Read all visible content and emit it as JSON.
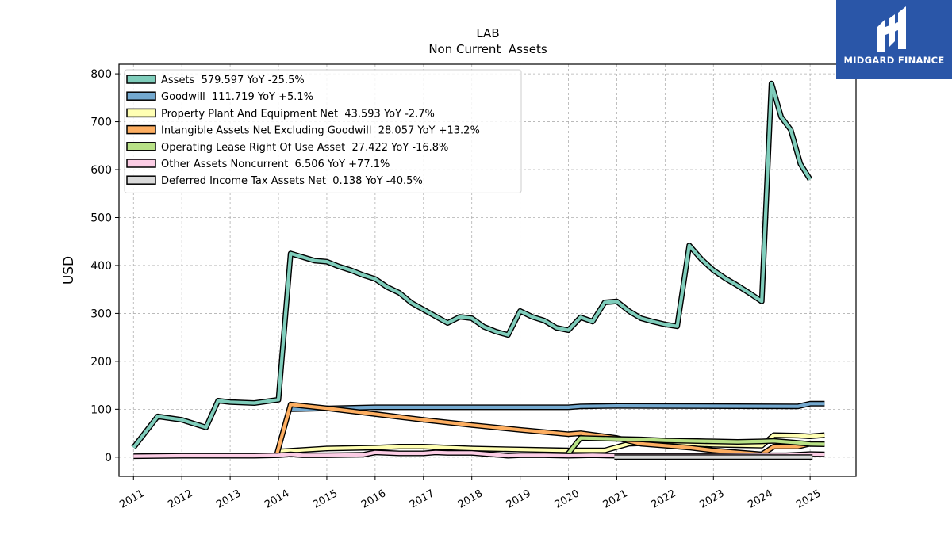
{
  "brand": {
    "name": "MIDGARD FINANCE",
    "color": "#2a56a8"
  },
  "chart_data": {
    "type": "line",
    "title": "LAB",
    "subtitle": "Non Current  Assets",
    "ylabel": "USD",
    "xlabel": "",
    "xlim": [
      2010.7,
      2025.95
    ],
    "ylim": [
      -40,
      820
    ],
    "yticks": [
      0,
      100,
      200,
      300,
      400,
      500,
      600,
      700,
      800
    ],
    "xticks": [
      "2011",
      "2012",
      "2013",
      "2014",
      "2015",
      "2016",
      "2017",
      "2018",
      "2019",
      "2020",
      "2021",
      "2022",
      "2023",
      "2024",
      "2025"
    ],
    "grid": true,
    "legend_position": "top-left",
    "series": [
      {
        "name": "Assets",
        "legend": "Assets  579.597 YoY -25.5%",
        "color": "#7fcdbb",
        "points": [
          [
            2011.0,
            20
          ],
          [
            2011.5,
            85
          ],
          [
            2012.0,
            78
          ],
          [
            2012.5,
            62
          ],
          [
            2012.75,
            118
          ],
          [
            2013.0,
            115
          ],
          [
            2013.5,
            113
          ],
          [
            2014.0,
            120
          ],
          [
            2014.25,
            425
          ],
          [
            2014.75,
            410
          ],
          [
            2015.0,
            408
          ],
          [
            2015.25,
            398
          ],
          [
            2015.5,
            390
          ],
          [
            2015.75,
            380
          ],
          [
            2016.0,
            372
          ],
          [
            2016.25,
            355
          ],
          [
            2016.5,
            343
          ],
          [
            2016.75,
            322
          ],
          [
            2017.0,
            308
          ],
          [
            2017.5,
            280
          ],
          [
            2017.75,
            293
          ],
          [
            2018.0,
            290
          ],
          [
            2018.25,
            272
          ],
          [
            2018.5,
            262
          ],
          [
            2018.75,
            255
          ],
          [
            2019.0,
            305
          ],
          [
            2019.25,
            293
          ],
          [
            2019.5,
            285
          ],
          [
            2019.75,
            270
          ],
          [
            2020.0,
            265
          ],
          [
            2020.25,
            292
          ],
          [
            2020.5,
            283
          ],
          [
            2020.75,
            323
          ],
          [
            2021.0,
            325
          ],
          [
            2021.25,
            305
          ],
          [
            2021.5,
            290
          ],
          [
            2021.75,
            283
          ],
          [
            2022.0,
            277
          ],
          [
            2022.25,
            273
          ],
          [
            2022.5,
            442
          ],
          [
            2022.75,
            413
          ],
          [
            2023.0,
            390
          ],
          [
            2023.25,
            373
          ],
          [
            2023.5,
            358
          ],
          [
            2023.75,
            342
          ],
          [
            2024.0,
            325
          ],
          [
            2024.2,
            780
          ],
          [
            2024.4,
            710
          ],
          [
            2024.6,
            683
          ],
          [
            2024.8,
            612
          ],
          [
            2025.0,
            579.597
          ]
        ]
      },
      {
        "name": "Goodwill",
        "legend": "Goodwill  111.719 YoY +5.1%",
        "color": "#74a9cf",
        "points": [
          [
            2014.25,
            100
          ],
          [
            2016.0,
            104
          ],
          [
            2020.0,
            104
          ],
          [
            2020.25,
            106
          ],
          [
            2021.0,
            107
          ],
          [
            2024.75,
            106
          ],
          [
            2025.0,
            111.719
          ],
          [
            2025.3,
            111.719
          ]
        ]
      },
      {
        "name": "Property Plant And Equipment Net",
        "legend": "Property Plant And Equipment Net  43.593 YoY -2.7%",
        "color": "#ffffb3",
        "points": [
          [
            2014.0,
            12
          ],
          [
            2014.5,
            15
          ],
          [
            2015.0,
            18
          ],
          [
            2016.0,
            20
          ],
          [
            2016.5,
            22
          ],
          [
            2017.0,
            22
          ],
          [
            2018.0,
            18
          ],
          [
            2019.0,
            16
          ],
          [
            2020.0,
            14
          ],
          [
            2020.75,
            14
          ],
          [
            2021.25,
            28
          ],
          [
            2021.75,
            30
          ],
          [
            2022.0,
            30
          ],
          [
            2022.5,
            28
          ],
          [
            2023.0,
            26
          ],
          [
            2023.5,
            25
          ],
          [
            2024.0,
            24
          ],
          [
            2024.25,
            46
          ],
          [
            2024.75,
            45
          ],
          [
            2025.0,
            43.593
          ],
          [
            2025.3,
            46
          ]
        ]
      },
      {
        "name": "Intangible Assets Net Excluding Goodwill",
        "legend": "Intangible Assets Net Excluding Goodwill  28.057 YoY +13.2%",
        "color": "#fdae61",
        "points": [
          [
            2013.95,
            0
          ],
          [
            2014.25,
            110
          ],
          [
            2015.0,
            102
          ],
          [
            2016.0,
            90
          ],
          [
            2017.0,
            78
          ],
          [
            2018.0,
            67
          ],
          [
            2019.0,
            57
          ],
          [
            2020.0,
            48
          ],
          [
            2020.25,
            50
          ],
          [
            2021.0,
            40
          ],
          [
            2021.5,
            28
          ],
          [
            2022.0,
            24
          ],
          [
            2022.5,
            20
          ],
          [
            2023.0,
            14
          ],
          [
            2023.5,
            10
          ],
          [
            2024.0,
            6
          ],
          [
            2024.25,
            22
          ],
          [
            2024.75,
            22
          ],
          [
            2025.0,
            28.057
          ],
          [
            2025.3,
            28
          ]
        ]
      },
      {
        "name": "Operating Lease Right Of Use Asset",
        "legend": "Operating Lease Right Of Use Asset  27.422 YoY -16.8%",
        "color": "#b8e186",
        "points": [
          [
            2020.0,
            8
          ],
          [
            2020.25,
            40
          ],
          [
            2021.0,
            38
          ],
          [
            2021.5,
            37
          ],
          [
            2022.0,
            35
          ],
          [
            2022.5,
            34
          ],
          [
            2023.0,
            33
          ],
          [
            2023.5,
            32
          ],
          [
            2024.0,
            33
          ],
          [
            2024.25,
            34
          ],
          [
            2024.75,
            30
          ],
          [
            2025.0,
            27.422
          ],
          [
            2025.3,
            27
          ]
        ]
      },
      {
        "name": "Other Assets Noncurrent",
        "legend": "Other Assets Noncurrent  6.506 YoY +77.1%",
        "color": "#fccde5",
        "points": [
          [
            2011.0,
            2
          ],
          [
            2012.0,
            3
          ],
          [
            2012.5,
            3
          ],
          [
            2013.0,
            3
          ],
          [
            2013.5,
            3
          ],
          [
            2014.0,
            4
          ],
          [
            2014.25,
            6
          ],
          [
            2014.5,
            4
          ],
          [
            2015.0,
            4
          ],
          [
            2015.75,
            5
          ],
          [
            2016.0,
            10
          ],
          [
            2016.5,
            8
          ],
          [
            2017.0,
            8
          ],
          [
            2017.25,
            10
          ],
          [
            2017.5,
            9
          ],
          [
            2018.0,
            9
          ],
          [
            2018.75,
            3
          ],
          [
            2019.0,
            4
          ],
          [
            2019.5,
            4
          ],
          [
            2020.0,
            3
          ],
          [
            2020.5,
            4
          ],
          [
            2021.0,
            3
          ],
          [
            2022.0,
            3
          ],
          [
            2023.0,
            3
          ],
          [
            2024.0,
            4
          ],
          [
            2024.5,
            4
          ],
          [
            2025.0,
            6.506
          ],
          [
            2025.3,
            6
          ]
        ]
      },
      {
        "name": "Deferred Income Tax Assets Net",
        "legend": "Deferred Income Tax Assets Net  0.138 YoY -40.5%",
        "color": "#d9d9d9",
        "points": [
          [
            2020.95,
            0.2
          ],
          [
            2025.05,
            0.138
          ]
        ]
      }
    ]
  }
}
